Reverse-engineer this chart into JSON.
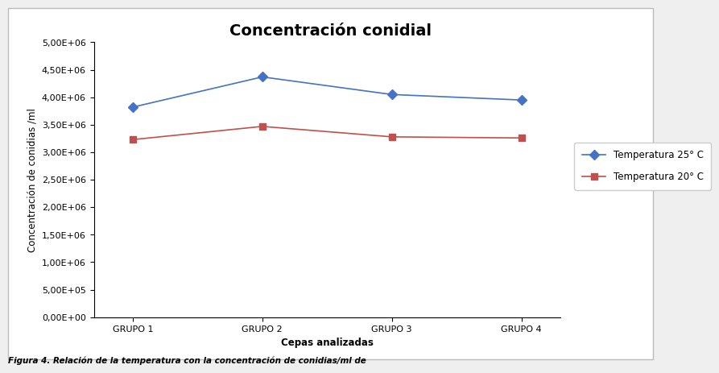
{
  "title": "Concentración conidial",
  "xlabel": "Cepas analizadas",
  "ylabel": "Concentración de conidias /ml",
  "categories": [
    "GRUPO 1",
    "GRUPO 2",
    "GRUPO 3",
    "GRUPO 4"
  ],
  "series": [
    {
      "label": "Temperatura 25° C",
      "values": [
        3820000,
        4370000,
        4050000,
        3950000
      ],
      "color": "#4472C4",
      "marker": "D",
      "markersize": 6
    },
    {
      "label": "Temperatura 20° C",
      "values": [
        3230000,
        3470000,
        3280000,
        3260000
      ],
      "color": "#C0504D",
      "marker": "s",
      "markersize": 6
    }
  ],
  "ylim": [
    0,
    5000000
  ],
  "yticks": [
    0,
    500000,
    1000000,
    1500000,
    2000000,
    2500000,
    3000000,
    3500000,
    4000000,
    4500000,
    5000000
  ],
  "outer_bg": "#EFEFEF",
  "inner_bg": "#FFFFFF",
  "border_color": "#AAAAAA",
  "title_fontsize": 14,
  "label_fontsize": 8.5,
  "tick_fontsize": 8,
  "legend_fontsize": 8.5
}
